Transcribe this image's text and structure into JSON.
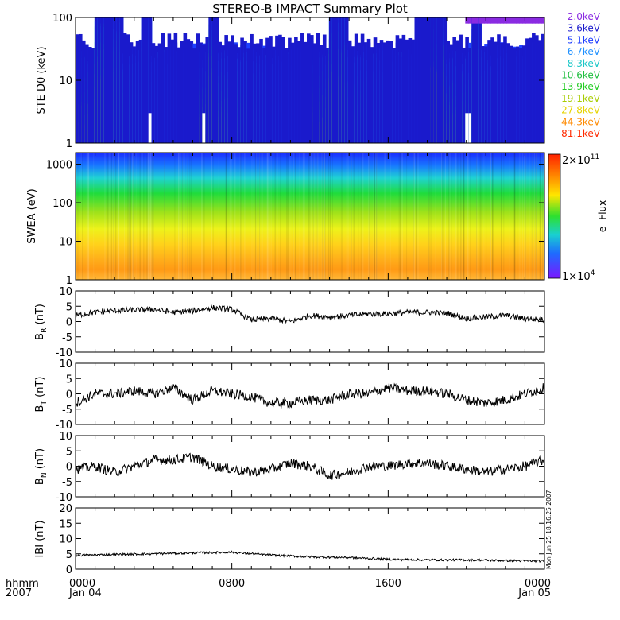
{
  "title": "STEREO-B IMPACT Summary Plot",
  "timestamp": "Mon Jun 25 18:16:25 2007",
  "time_axis": {
    "header_left_1": "hhmm",
    "header_left_2": "2007",
    "ticks": [
      {
        "hhmm": "0000",
        "date": "Jan 04",
        "frac": 0
      },
      {
        "hhmm": "0800",
        "date": "",
        "frac": 0.3333
      },
      {
        "hhmm": "1600",
        "date": "",
        "frac": 0.6667
      },
      {
        "hhmm": "0000",
        "date": "Jan 05",
        "frac": 1
      }
    ]
  },
  "chart_data": [
    {
      "type": "line",
      "panel": "ste",
      "ylabel": "STE D0 (keV)",
      "yscale": "log",
      "ylim": [
        1,
        100
      ],
      "yticks": [
        {
          "v": 1,
          "label": "1"
        },
        {
          "v": 10,
          "label": "10"
        },
        {
          "v": 100,
          "label": "100"
        }
      ],
      "series": [
        {
          "name": "2.0keV",
          "color": "#8a2be2"
        },
        {
          "name": "3.6keV",
          "color": "#1a1acc"
        },
        {
          "name": "5.1keV",
          "color": "#1f3fff"
        },
        {
          "name": "6.7keV",
          "color": "#1e90ff"
        },
        {
          "name": "8.3keV",
          "color": "#19c7c7"
        },
        {
          "name": "10.6keV",
          "color": "#1fbf3f"
        },
        {
          "name": "13.9keV",
          "color": "#22cc22"
        },
        {
          "name": "19.1keV",
          "color": "#a8cc00"
        },
        {
          "name": "27.8keV",
          "color": "#e6d400"
        },
        {
          "name": "44.3keV",
          "color": "#ff8a00"
        },
        {
          "name": "81.1keV",
          "color": "#ff2a00"
        }
      ]
    },
    {
      "type": "heatmap",
      "panel": "swea",
      "ylabel": "SWEA (eV)",
      "yscale": "log",
      "ylim": [
        1,
        2000
      ],
      "yticks": [
        {
          "v": 1,
          "label": "1"
        },
        {
          "v": 10,
          "label": "10"
        },
        {
          "v": 100,
          "label": "100"
        },
        {
          "v": 1000,
          "label": "1000"
        }
      ],
      "colorbar": {
        "label": "e- Flux",
        "max_base": "2×10",
        "max_exp": "11",
        "min_base": "1×10",
        "min_exp": "4",
        "range": [
          10000,
          200000000000
        ]
      }
    },
    {
      "type": "line",
      "panel": "br",
      "ylabel_main": "B",
      "ylabel_sub": "R",
      "ylabel_unit": " (nT)",
      "ylim": [
        -10,
        10
      ],
      "yticks": [
        "10",
        "5",
        "0",
        "-5",
        "-10"
      ],
      "x_hours": [
        0,
        1,
        2,
        3,
        4,
        5,
        6,
        7,
        8,
        9,
        10,
        11,
        12,
        13,
        14,
        15,
        16,
        17,
        18,
        19,
        20,
        21,
        22,
        23,
        24
      ],
      "values": [
        2,
        3,
        3.5,
        3.8,
        4,
        3,
        3.5,
        4.5,
        4,
        0.5,
        1,
        0,
        2,
        1.5,
        2,
        2.5,
        2.5,
        3,
        3,
        2.8,
        1,
        1.5,
        2,
        1,
        0.5
      ]
    },
    {
      "type": "line",
      "panel": "bt",
      "ylabel_main": "B",
      "ylabel_sub": "T",
      "ylabel_unit": " (nT)",
      "ylim": [
        -10,
        10
      ],
      "yticks": [
        "10",
        "5",
        "0",
        "-5",
        "-10"
      ],
      "x_hours": [
        0,
        1,
        2,
        3,
        4,
        5,
        6,
        7,
        8,
        9,
        10,
        11,
        12,
        13,
        14,
        15,
        16,
        17,
        18,
        19,
        20,
        21,
        22,
        23,
        24
      ],
      "values": [
        -3,
        0,
        0,
        1,
        0,
        2,
        -2,
        1,
        0,
        -1,
        -3,
        -3,
        -2,
        -2,
        0,
        0,
        2,
        1,
        1,
        0,
        -2,
        -3,
        -2,
        0,
        2
      ]
    },
    {
      "type": "line",
      "panel": "bn",
      "ylabel_main": "B",
      "ylabel_sub": "N",
      "ylabel_unit": " (nT)",
      "ylim": [
        -10,
        10
      ],
      "yticks": [
        "10",
        "5",
        "0",
        "-5",
        "-10"
      ],
      "x_hours": [
        0,
        1,
        2,
        3,
        4,
        5,
        6,
        7,
        8,
        9,
        10,
        11,
        12,
        13,
        14,
        15,
        16,
        17,
        18,
        19,
        20,
        21,
        22,
        23,
        24
      ],
      "values": [
        -1,
        0,
        -2,
        0,
        2,
        2,
        3,
        0,
        -1,
        -2,
        -1,
        1,
        0,
        -3,
        -2,
        0,
        0,
        1,
        1,
        0,
        -1,
        -2,
        -1,
        0,
        2
      ]
    },
    {
      "type": "line",
      "panel": "bmag",
      "ylabel_main": "IBI",
      "ylabel_sub": "",
      "ylabel_unit": " (nT)",
      "ylim": [
        0,
        20
      ],
      "yticks": [
        "20",
        "15",
        "10",
        "5",
        "0"
      ],
      "x_hours": [
        0,
        2,
        4,
        6,
        8,
        10,
        12,
        14,
        16,
        18,
        20,
        22,
        24
      ],
      "values": [
        4.5,
        4.8,
        5,
        5.3,
        5.5,
        4.6,
        4,
        3.8,
        3.2,
        3,
        3,
        2.8,
        2.6
      ]
    }
  ]
}
